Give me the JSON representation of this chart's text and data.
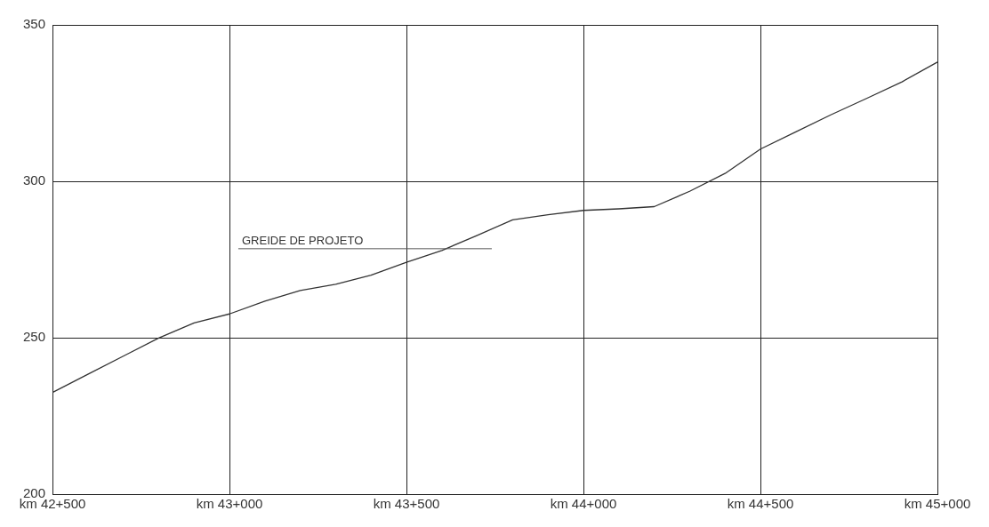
{
  "chart_data": {
    "type": "line",
    "categories": [
      "km 42+500",
      null,
      null,
      null,
      null,
      "km 43+000",
      null,
      null,
      null,
      null,
      "km 43+500",
      null,
      null,
      null,
      null,
      "km 44+000",
      null,
      null,
      null,
      null,
      "km 44+500",
      null,
      null,
      null,
      null,
      "km 45+000"
    ],
    "series": [
      {
        "color": "#333333",
        "values": [
          232.5,
          238.3,
          244.1,
          249.9,
          254.7,
          257.6,
          261.7,
          265.1,
          267.1,
          270,
          274.1,
          277.9,
          282.7,
          287.7,
          289.3,
          290.7,
          291.2,
          291.9,
          296.8,
          302.5,
          310.3,
          315.8,
          321.3,
          326.5,
          331.8,
          338.1
        ]
      }
    ],
    "ylim": [
      200,
      350
    ],
    "yticks": [
      200,
      250,
      300,
      350
    ],
    "grid": true,
    "marker": "none",
    "line_style": "solid",
    "annotations": [
      "GREIDE DE PROJETO"
    ]
  }
}
